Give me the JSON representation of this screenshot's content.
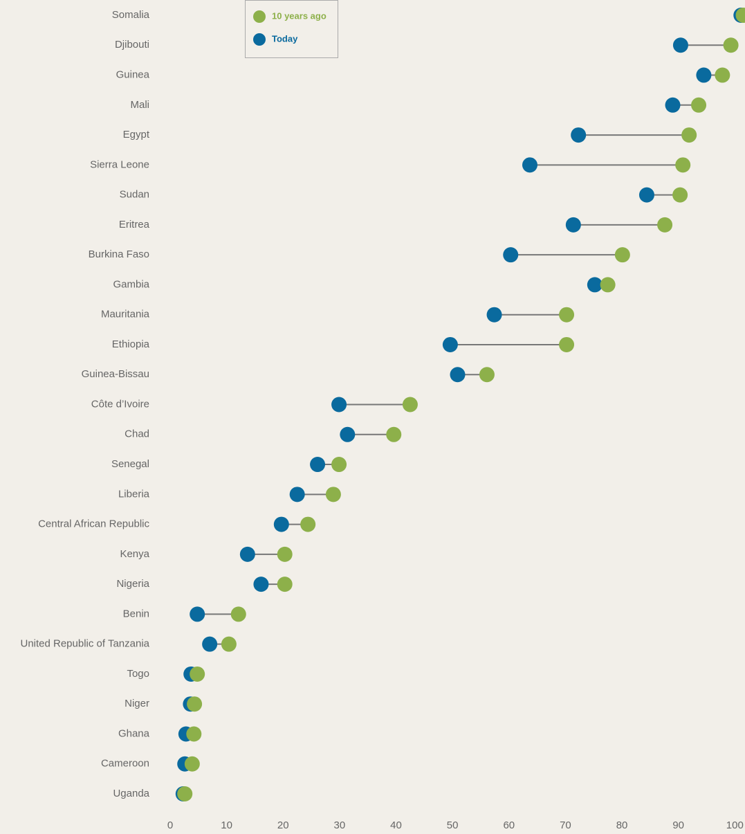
{
  "chart_data": {
    "type": "dumbbell",
    "categories": [
      "Somalia",
      "Djibouti",
      "Guinea",
      "Mali",
      "Egypt",
      "Sierra Leone",
      "Sudan",
      "Eritrea",
      "Burkina Faso",
      "Gambia",
      "Mauritania",
      "Ethiopia",
      "Guinea-Bissau",
      "Côte d’Ivoire",
      "Chad",
      "Senegal",
      "Liberia",
      "Central African Republic",
      "Kenya",
      "Nigeria",
      "Benin",
      "United Republic of Tanzania",
      "Togo",
      "Niger",
      "Ghana",
      "Cameroon",
      "Uganda"
    ],
    "series": [
      {
        "name": "10 years ago",
        "color": "#8db04a",
        "values": [
          101.5,
          99.3,
          97.8,
          93.6,
          91.9,
          90.8,
          90.3,
          87.6,
          80.1,
          77.5,
          70.2,
          70.2,
          56.1,
          42.5,
          39.6,
          29.9,
          28.9,
          24.4,
          20.3,
          20.3,
          12.1,
          10.4,
          4.8,
          4.3,
          4.2,
          3.9,
          2.6
        ]
      },
      {
        "name": "Today",
        "color": "#0a6a9e",
        "values": [
          101.1,
          90.4,
          94.5,
          89.0,
          72.3,
          63.7,
          84.4,
          71.4,
          60.3,
          75.2,
          57.4,
          49.6,
          50.9,
          29.9,
          31.4,
          26.1,
          22.5,
          19.7,
          13.7,
          16.1,
          4.8,
          7.0,
          3.7,
          3.6,
          2.8,
          2.6,
          2.3
        ]
      }
    ],
    "xlim": [
      0,
      101.8
    ],
    "xticks": [
      0,
      10,
      20,
      30,
      40,
      50,
      60,
      70,
      80,
      90,
      100
    ],
    "connector_color": "#777777",
    "legend": "upper left"
  }
}
